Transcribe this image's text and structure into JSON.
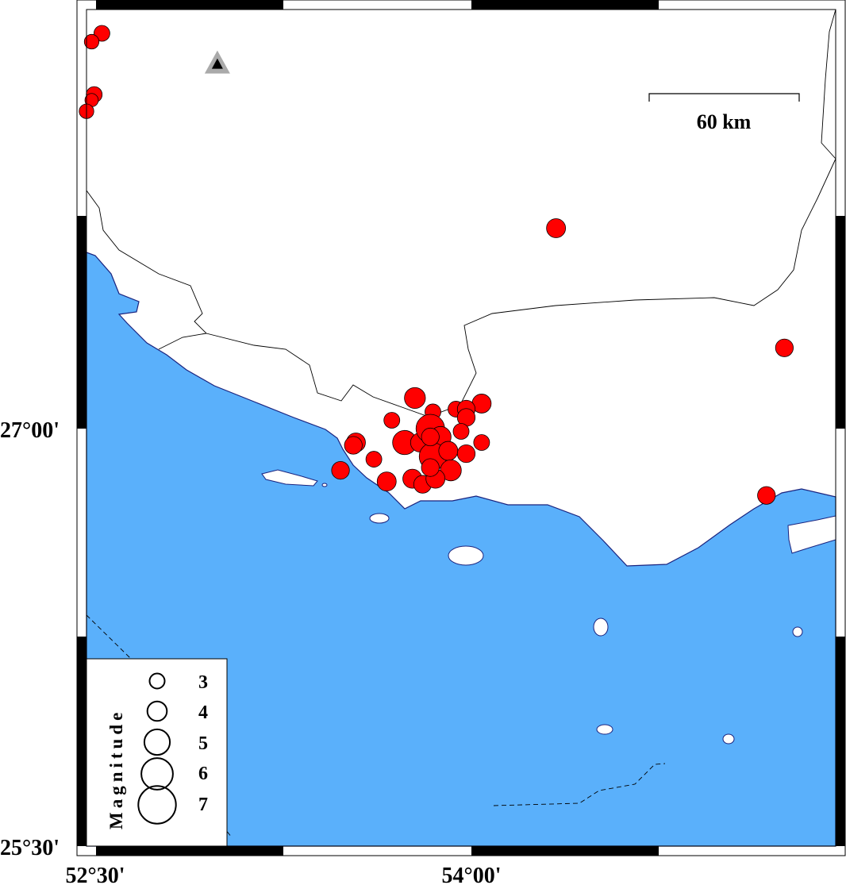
{
  "map": {
    "extent": {
      "lon": [
        52.5,
        55.42
      ],
      "lat": [
        25.5,
        28.51
      ]
    },
    "colors": {
      "sea": "#5ab0fb",
      "land": "#ffffff",
      "coast": "#1a237e",
      "event": "#ff0000",
      "station": "#000000",
      "station_halo": "#aaaaaa"
    },
    "axis_labels": {
      "lat": [
        {
          "value": 27.0,
          "text": "27°00'"
        },
        {
          "value": 25.5,
          "text": "25°30'"
        }
      ],
      "lon": [
        {
          "value": 52.5,
          "text": "52°30'"
        },
        {
          "value": 54.0,
          "text": "54°00'"
        }
      ]
    },
    "scale_bar": {
      "label": "60 km",
      "length_km": 60
    },
    "station": {
      "lon": 53.01,
      "lat": 28.31,
      "symbol": "triangle"
    },
    "legend": {
      "title": "Magnitude",
      "entries": [
        {
          "mag": 3,
          "label": "3"
        },
        {
          "mag": 4,
          "label": "4"
        },
        {
          "mag": 5,
          "label": "5"
        },
        {
          "mag": 6,
          "label": "6"
        },
        {
          "mag": 7,
          "label": "7"
        }
      ]
    },
    "events": [
      {
        "lon": 52.56,
        "lat": 28.42,
        "mag": 3.0
      },
      {
        "lon": 52.52,
        "lat": 28.39,
        "mag": 2.8
      },
      {
        "lon": 52.53,
        "lat": 28.2,
        "mag": 3.0
      },
      {
        "lon": 52.52,
        "lat": 28.18,
        "mag": 2.6
      },
      {
        "lon": 52.5,
        "lat": 28.14,
        "mag": 2.8
      },
      {
        "lon": 54.33,
        "lat": 27.72,
        "mag": 3.5
      },
      {
        "lon": 55.22,
        "lat": 27.29,
        "mag": 3.3
      },
      {
        "lon": 55.15,
        "lat": 26.76,
        "mag": 3.3
      },
      {
        "lon": 53.78,
        "lat": 27.11,
        "mag": 3.8
      },
      {
        "lon": 53.85,
        "lat": 27.06,
        "mag": 3.0
      },
      {
        "lon": 53.69,
        "lat": 27.03,
        "mag": 3.0
      },
      {
        "lon": 53.94,
        "lat": 27.07,
        "mag": 3.0
      },
      {
        "lon": 54.04,
        "lat": 27.09,
        "mag": 3.5
      },
      {
        "lon": 53.98,
        "lat": 27.07,
        "mag": 3.3
      },
      {
        "lon": 53.98,
        "lat": 27.04,
        "mag": 3.3
      },
      {
        "lon": 53.96,
        "lat": 26.99,
        "mag": 3.0
      },
      {
        "lon": 54.04,
        "lat": 26.95,
        "mag": 3.0
      },
      {
        "lon": 53.55,
        "lat": 26.95,
        "mag": 3.5
      },
      {
        "lon": 53.54,
        "lat": 26.94,
        "mag": 3.3
      },
      {
        "lon": 53.62,
        "lat": 26.89,
        "mag": 3.0
      },
      {
        "lon": 53.49,
        "lat": 26.85,
        "mag": 3.3
      },
      {
        "lon": 53.67,
        "lat": 26.81,
        "mag": 3.5
      },
      {
        "lon": 53.74,
        "lat": 26.95,
        "mag": 4.3
      },
      {
        "lon": 53.8,
        "lat": 26.95,
        "mag": 3.5
      },
      {
        "lon": 53.84,
        "lat": 27.0,
        "mag": 5.0
      },
      {
        "lon": 53.88,
        "lat": 26.97,
        "mag": 3.8
      },
      {
        "lon": 53.85,
        "lat": 26.9,
        "mag": 4.8
      },
      {
        "lon": 53.91,
        "lat": 26.92,
        "mag": 3.5
      },
      {
        "lon": 53.92,
        "lat": 26.85,
        "mag": 3.8
      },
      {
        "lon": 53.98,
        "lat": 26.91,
        "mag": 3.3
      },
      {
        "lon": 53.77,
        "lat": 26.82,
        "mag": 3.5
      },
      {
        "lon": 53.81,
        "lat": 26.8,
        "mag": 3.3
      },
      {
        "lon": 53.86,
        "lat": 26.82,
        "mag": 3.5
      },
      {
        "lon": 53.84,
        "lat": 26.86,
        "mag": 3.3
      },
      {
        "lon": 53.84,
        "lat": 26.97,
        "mag": 3.3
      }
    ]
  }
}
